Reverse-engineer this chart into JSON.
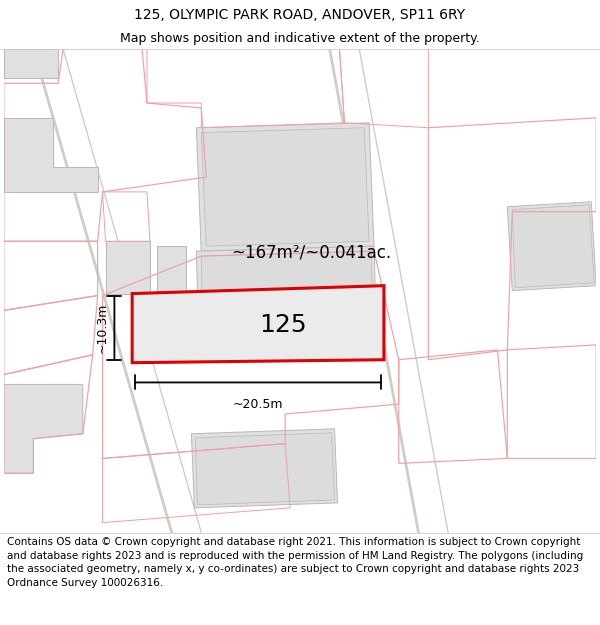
{
  "title_line1": "125, OLYMPIC PARK ROAD, ANDOVER, SP11 6RY",
  "title_line2": "Map shows position and indicative extent of the property.",
  "footer_text": "Contains OS data © Crown copyright and database right 2021. This information is subject to Crown copyright and database rights 2023 and is reproduced with the permission of HM Land Registry. The polygons (including the associated geometry, namely x, y co-ordinates) are subject to Crown copyright and database rights 2023 Ordnance Survey 100026316.",
  "map_bg": "#f9f8f7",
  "bldg_fill": "#e0e0e0",
  "bldg_edge": "#b8b8b8",
  "plot_outline_color": "#f0a0a0",
  "highlight_outline_color": "#dd0000",
  "highlight_fill": "#ebebeb",
  "dim_line_color": "#000000",
  "road_line_color": "#d0ccc8",
  "label_125": "125",
  "area_label": "~167m²/~0.041ac.",
  "dim_width": "~20.5m",
  "dim_height": "~10.3m",
  "title_fontsize": 10,
  "subtitle_fontsize": 9,
  "footer_fontsize": 7.5,
  "header_bg": "#ffffff",
  "footer_bg": "#ffffff"
}
